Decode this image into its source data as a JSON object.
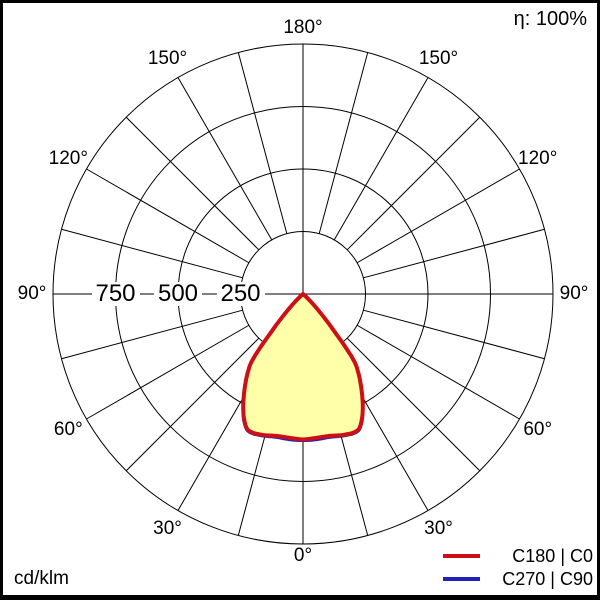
{
  "header": {
    "efficiency": "η: 100%"
  },
  "footer": {
    "unit": "cd/klm"
  },
  "legend": {
    "items": [
      {
        "label": "C180 | C0",
        "color": "#cc1016"
      },
      {
        "label": "C270 | C90",
        "color": "#2222bb"
      }
    ]
  },
  "chart_data": {
    "type": "polar",
    "subtype": "photometric-intensity-distribution",
    "unit": "cd/klm",
    "efficiency": "η: 100%",
    "fill_color": "#ffffaa",
    "grid_color": "#000000",
    "radial_ticks": [
      250,
      500,
      750
    ],
    "radial_max": 1000,
    "spoke_step_deg": 15,
    "angle_tick_labels": [
      "0°",
      "30°",
      "60°",
      "90°",
      "120°",
      "150°",
      "180°"
    ],
    "angles_deg": [
      0,
      2.5,
      5,
      7.5,
      10,
      12.5,
      15,
      17.5,
      20,
      22.5,
      25,
      27.5,
      30,
      32.5,
      35,
      37.5,
      40,
      42.5,
      45,
      47.5,
      50,
      52.5,
      55,
      60,
      70,
      80,
      90
    ],
    "series": [
      {
        "name": "C180 | C0",
        "color": "#cc1016",
        "stroke_width": 4,
        "values": [
          582,
          580,
          578,
          577,
          577,
          580,
          585,
          588,
          590,
          584,
          556,
          518,
          474,
          430,
          386,
          330,
          195,
          110,
          55,
          20,
          5,
          0,
          0,
          0,
          0,
          0,
          0
        ]
      },
      {
        "name": "C270 | C90",
        "color": "#2222bb",
        "stroke_width": 3,
        "values": [
          586,
          586,
          585,
          584,
          583,
          585,
          589,
          592,
          594,
          588,
          560,
          520,
          475,
          430,
          386,
          330,
          195,
          110,
          55,
          20,
          5,
          0,
          0,
          0,
          0,
          0,
          0
        ]
      }
    ]
  }
}
